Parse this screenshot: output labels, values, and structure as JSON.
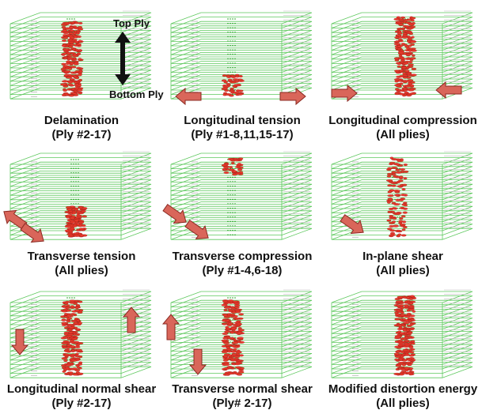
{
  "panels": [
    {
      "title": "Delamination",
      "subtitle": "(Ply #2-17)"
    },
    {
      "title": "Longitudinal tension",
      "subtitle": "(Ply #1-8,11,15-17)"
    },
    {
      "title": "Longitudinal compression",
      "subtitle": "(All plies)"
    },
    {
      "title": "Transverse tension",
      "subtitle": "(All plies)"
    },
    {
      "title": "Transverse compression",
      "subtitle": "(Ply #1-4,6-18)"
    },
    {
      "title": "In-plane shear",
      "subtitle": "(All plies)"
    },
    {
      "title": "Longitudinal normal shear",
      "subtitle": "(Ply #2-17)"
    },
    {
      "title": "Transverse normal shear",
      "subtitle": "(Ply# 2-17)"
    },
    {
      "title": "Modified distortion energy",
      "subtitle": "(All plies)"
    }
  ],
  "annotations": {
    "top_ply": "Top Ply",
    "bottom_ply": "Bottom Ply"
  }
}
